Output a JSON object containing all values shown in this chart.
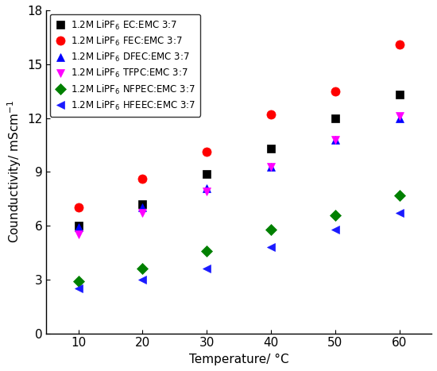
{
  "temperatures": [
    10,
    20,
    30,
    40,
    50,
    60
  ],
  "series": [
    {
      "label": "1.2M LiPF$_6$ EC:EMC 3:7",
      "color": "black",
      "marker": "s",
      "markersize": 7,
      "values": [
        6.0,
        7.2,
        8.9,
        10.3,
        12.0,
        13.3
      ]
    },
    {
      "label": "1.2M LiPF$_6$ FEC:EMC 3:7",
      "color": "red",
      "marker": "o",
      "markersize": 8,
      "values": [
        7.0,
        8.6,
        10.1,
        12.2,
        13.5,
        16.1
      ]
    },
    {
      "label": "1.2M LiPF$_6$ DFEC:EMC 3:7",
      "color": "blue",
      "marker": "^",
      "markersize": 7,
      "values": [
        5.9,
        7.0,
        8.1,
        9.3,
        10.8,
        12.0
      ]
    },
    {
      "label": "1.2M LiPF$_6$ TFPC:EMC 3:7",
      "color": "magenta",
      "marker": "v",
      "markersize": 7,
      "values": [
        5.5,
        6.7,
        7.9,
        9.3,
        10.8,
        12.1
      ]
    },
    {
      "label": "1.2M LiPF$_6$ NFPEC:EMC 3:7",
      "color": "green",
      "marker": "D",
      "markersize": 7,
      "values": [
        2.9,
        3.6,
        4.6,
        5.8,
        6.6,
        7.7
      ]
    },
    {
      "label": "1.2M LiPF$_6$ HFEEC:EMC 3:7",
      "color": "#1a1aff",
      "marker": "<",
      "markersize": 7,
      "values": [
        2.5,
        3.0,
        3.6,
        4.8,
        5.8,
        6.7
      ]
    }
  ],
  "xlabel": "Temperature/ °C",
  "ylabel": "Counductivity/ mScm$^{-1}$",
  "ylim": [
    0,
    18
  ],
  "yticks": [
    0,
    3,
    6,
    9,
    12,
    15,
    18
  ],
  "xlim": [
    5,
    65
  ],
  "xticks": [
    10,
    20,
    30,
    40,
    50,
    60
  ],
  "legend_fontsize": 8.5,
  "axis_fontsize": 11,
  "tick_fontsize": 11,
  "figsize": [
    5.5,
    4.67
  ],
  "dpi": 100
}
